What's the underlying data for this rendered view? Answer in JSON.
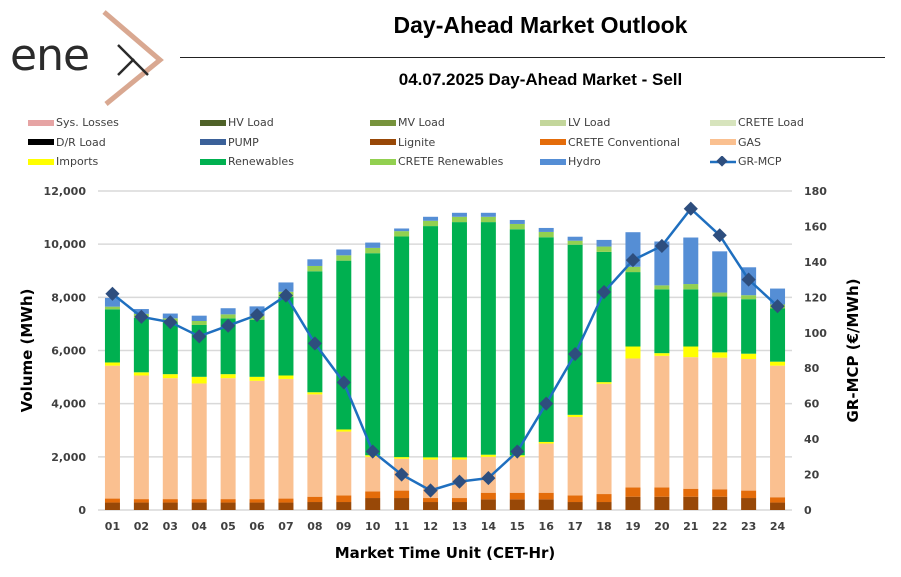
{
  "header": {
    "logo_text": "ene",
    "logo_accent_color": "#d9a891",
    "title": "Day-Ahead Market Outlook",
    "subtitle": "04.07.2025  Day-Ahead Market - Sell"
  },
  "chart_data": {
    "type": "bar",
    "stacked": true,
    "title": "04.07.2025  Day-Ahead Market - Sell",
    "xlabel": "Market Time Unit (CET-Hr)",
    "ylabel": "Volume (MWh)",
    "y2label": "GR-MCP (€/MWh)",
    "ylim": [
      0,
      12000
    ],
    "y2lim": [
      0,
      180
    ],
    "yticks": [
      "0",
      "2,000",
      "4,000",
      "6,000",
      "8,000",
      "10,000",
      "12,000"
    ],
    "y2ticks": [
      "0",
      "20",
      "40",
      "60",
      "80",
      "100",
      "120",
      "140",
      "160",
      "180"
    ],
    "grid": true,
    "legend_position": "top",
    "categories": [
      "01",
      "02",
      "03",
      "04",
      "05",
      "06",
      "07",
      "08",
      "09",
      "10",
      "11",
      "12",
      "13",
      "14",
      "15",
      "16",
      "17",
      "18",
      "19",
      "20",
      "21",
      "22",
      "23",
      "24"
    ],
    "legend": [
      {
        "name": "Sys. Losses",
        "color": "#e6a4a4",
        "kind": "bar"
      },
      {
        "name": "HV Load",
        "color": "#4f6228",
        "kind": "bar"
      },
      {
        "name": "MV Load",
        "color": "#77933c",
        "kind": "bar"
      },
      {
        "name": "LV Load",
        "color": "#c3d69b",
        "kind": "bar"
      },
      {
        "name": "CRETE Load",
        "color": "#d7e4bd",
        "kind": "bar"
      },
      {
        "name": "D/R Load",
        "color": "#000000",
        "kind": "bar"
      },
      {
        "name": "PUMP",
        "color": "#3b6199",
        "kind": "bar"
      },
      {
        "name": "Lignite",
        "color": "#984807",
        "kind": "bar"
      },
      {
        "name": "CRETE Conventional",
        "color": "#e46c0a",
        "kind": "bar"
      },
      {
        "name": "GAS",
        "color": "#fac090",
        "kind": "bar"
      },
      {
        "name": "Imports",
        "color": "#ffff00",
        "kind": "bar"
      },
      {
        "name": "Renewables",
        "color": "#00b050",
        "kind": "bar"
      },
      {
        "name": "CRETE Renewables",
        "color": "#92d050",
        "kind": "bar"
      },
      {
        "name": "Hydro",
        "color": "#558ed5",
        "kind": "bar"
      },
      {
        "name": "GR-MCP",
        "color": "#2e4e7e",
        "kind": "line"
      }
    ],
    "series": [
      {
        "name": "Lignite",
        "color": "#984807",
        "values": [
          280,
          280,
          280,
          280,
          280,
          280,
          280,
          300,
          300,
          450,
          450,
          300,
          300,
          400,
          400,
          400,
          300,
          300,
          500,
          500,
          500,
          500,
          450,
          280
        ]
      },
      {
        "name": "CRETE Conventional",
        "color": "#e46c0a",
        "values": [
          150,
          130,
          130,
          130,
          130,
          130,
          150,
          200,
          250,
          250,
          280,
          150,
          150,
          250,
          250,
          250,
          250,
          300,
          350,
          350,
          300,
          280,
          280,
          200
        ]
      },
      {
        "name": "GAS",
        "color": "#fac090",
        "values": [
          5000,
          4650,
          4550,
          4350,
          4550,
          4450,
          4500,
          3850,
          2400,
          1300,
          1200,
          1450,
          1450,
          1350,
          1350,
          1850,
          2950,
          4150,
          4850,
          4950,
          4950,
          4950,
          4950,
          4950
        ]
      },
      {
        "name": "Imports",
        "color": "#ffff00",
        "values": [
          120,
          120,
          150,
          250,
          150,
          150,
          130,
          80,
          80,
          60,
          60,
          80,
          80,
          80,
          60,
          60,
          80,
          60,
          450,
          100,
          400,
          200,
          200,
          150
        ]
      },
      {
        "name": "Renewables",
        "color": "#00b050",
        "values": [
          2000,
          2050,
          1950,
          1950,
          2100,
          2150,
          2950,
          4550,
          6350,
          7600,
          8300,
          8700,
          8850,
          8750,
          8500,
          7700,
          6400,
          4900,
          2800,
          2400,
          2150,
          2100,
          2050,
          2000
        ]
      },
      {
        "name": "CRETE Renewables",
        "color": "#92d050",
        "values": [
          100,
          150,
          150,
          150,
          150,
          150,
          200,
          200,
          200,
          200,
          200,
          200,
          200,
          200,
          200,
          200,
          150,
          200,
          200,
          150,
          200,
          150,
          150,
          150
        ]
      },
      {
        "name": "Hydro",
        "color": "#558ed5",
        "values": [
          330,
          180,
          180,
          200,
          230,
          350,
          350,
          250,
          220,
          200,
          100,
          150,
          150,
          150,
          150,
          150,
          150,
          250,
          1300,
          1650,
          1750,
          1550,
          1050,
          600
        ]
      },
      {
        "name": "GR-MCP",
        "color": "#2e4e7e",
        "kind": "line",
        "axis": "right",
        "values": [
          122,
          109,
          106,
          98,
          104,
          110,
          121,
          94,
          72,
          33,
          20,
          11,
          16,
          18,
          33,
          60,
          88,
          123,
          141,
          149,
          170,
          155,
          130,
          115
        ]
      }
    ]
  }
}
